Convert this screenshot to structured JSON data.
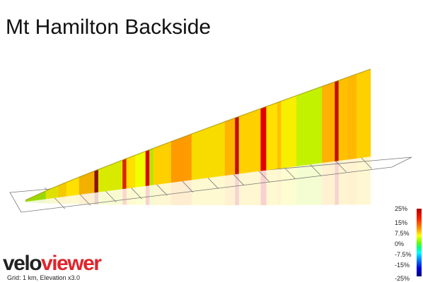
{
  "title": "Mt Hamilton Backside",
  "footer": "Grid: 1 km, Elevation x3.0",
  "brand": {
    "part1": "velo",
    "part2": "viewer"
  },
  "legend": {
    "labels": [
      "25%",
      "15%",
      "7.5%",
      "0%",
      "-7.5%",
      "-15%",
      "-25%"
    ],
    "colors": [
      "#b00000",
      "#ff2200",
      "#ff9900",
      "#ffff00",
      "#66ff00",
      "#00ff88",
      "#00ffff",
      "#0088ff",
      "#0000dd",
      "#00007a"
    ]
  },
  "chart_data": {
    "type": "area",
    "title": "Mt Hamilton Backside",
    "xlabel": "",
    "ylabel": "",
    "grid_km": 1,
    "elevation_exaggeration": 3,
    "color_metric": "gradient %",
    "segments": [
      {
        "from": 0.0,
        "to": 0.8,
        "color": "#9bd800"
      },
      {
        "from": 0.8,
        "to": 1.3,
        "color": "#e0e000"
      },
      {
        "from": 1.3,
        "to": 1.6,
        "color": "#f5c800"
      },
      {
        "from": 1.6,
        "to": 2.1,
        "color": "#ffe000"
      },
      {
        "from": 2.1,
        "to": 2.7,
        "color": "#f2b000"
      },
      {
        "from": 2.7,
        "to": 2.85,
        "color": "#8a1010"
      },
      {
        "from": 2.85,
        "to": 3.8,
        "color": "#d8ea00"
      },
      {
        "from": 3.8,
        "to": 3.95,
        "color": "#e02000"
      },
      {
        "from": 3.95,
        "to": 4.3,
        "color": "#ffe000"
      },
      {
        "from": 4.3,
        "to": 4.7,
        "color": "#f0ff00"
      },
      {
        "from": 4.7,
        "to": 4.85,
        "color": "#e00000"
      },
      {
        "from": 4.85,
        "to": 5.0,
        "color": "#b0e800"
      },
      {
        "from": 5.0,
        "to": 5.7,
        "color": "#ffd000"
      },
      {
        "from": 5.7,
        "to": 6.5,
        "color": "#ff9a00"
      },
      {
        "from": 6.5,
        "to": 7.8,
        "color": "#f8dc00"
      },
      {
        "from": 7.8,
        "to": 8.2,
        "color": "#ffb400"
      },
      {
        "from": 8.2,
        "to": 8.35,
        "color": "#c01000"
      },
      {
        "from": 8.35,
        "to": 9.2,
        "color": "#ffd000"
      },
      {
        "from": 9.2,
        "to": 9.42,
        "color": "#e00000"
      },
      {
        "from": 9.42,
        "to": 9.85,
        "color": "#ffe000"
      },
      {
        "from": 9.85,
        "to": 10.0,
        "color": "#ffc000"
      },
      {
        "from": 10.0,
        "to": 10.6,
        "color": "#f8ee00"
      },
      {
        "from": 10.6,
        "to": 11.6,
        "color": "#c2f200"
      },
      {
        "from": 11.6,
        "to": 12.1,
        "color": "#ffb000"
      },
      {
        "from": 12.1,
        "to": 12.25,
        "color": "#c01000"
      },
      {
        "from": 12.25,
        "to": 12.6,
        "color": "#ffc000"
      },
      {
        "from": 12.6,
        "to": 12.95,
        "color": "#ffb800"
      },
      {
        "from": 12.95,
        "to": 13.5,
        "color": "#ffd000"
      }
    ]
  }
}
